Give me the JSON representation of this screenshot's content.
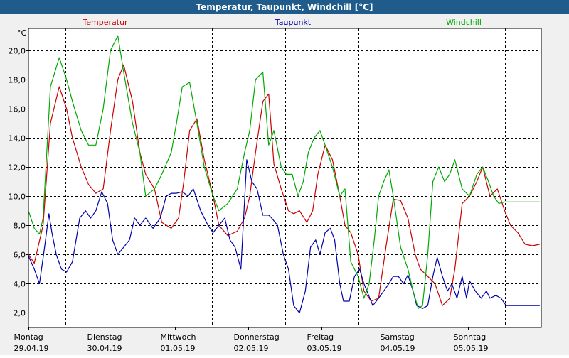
{
  "window": {
    "title": "Temperatur, Taupunkt, Windchill [°C]"
  },
  "chart_data": {
    "type": "line",
    "title": "Temperatur, Taupunkt, Windchill [°C]",
    "yunit": "°C",
    "ylim": [
      1.0,
      21.5
    ],
    "yticks": [
      2,
      4,
      6,
      8,
      10,
      12,
      14,
      16,
      18,
      20
    ],
    "ytick_labels": [
      "2,0",
      "4,0",
      "6,0",
      "8,0",
      "10,0",
      "12,0",
      "14,0",
      "16,0",
      "18,0",
      "20,0"
    ],
    "xlim": [
      0,
      7
    ],
    "day_labels": [
      {
        "day": "Montag",
        "date": "29.04.19"
      },
      {
        "day": "Dienstag",
        "date": "30.04.19"
      },
      {
        "day": "Mittwoch",
        "date": "01.05.19"
      },
      {
        "day": "Donnerstag",
        "date": "02.05.19"
      },
      {
        "day": "Freitag",
        "date": "03.05.19"
      },
      {
        "day": "Samstag",
        "date": "04.05.19"
      },
      {
        "day": "Sonntag",
        "date": "05.05.19"
      }
    ],
    "grid": true,
    "series": [
      {
        "name": "Temperatur",
        "color": "#cc0000",
        "x": [
          0,
          0.08,
          0.2,
          0.3,
          0.42,
          0.52,
          0.6,
          0.72,
          0.82,
          0.92,
          1.02,
          1.12,
          1.22,
          1.3,
          1.42,
          1.52,
          1.6,
          1.72,
          1.82,
          1.95,
          2.05,
          2.12,
          2.2,
          2.3,
          2.4,
          2.52,
          2.6,
          2.72,
          2.85,
          2.95,
          3.02,
          3.1,
          3.2,
          3.28,
          3.35,
          3.45,
          3.55,
          3.62,
          3.7,
          3.8,
          3.88,
          3.95,
          4.05,
          4.15,
          4.25,
          4.32,
          4.4,
          4.5,
          4.58,
          4.68,
          4.78,
          4.88,
          4.98,
          5.08,
          5.18,
          5.28,
          5.35,
          5.45,
          5.55,
          5.65,
          5.75,
          5.82,
          5.92,
          6.02,
          6.12,
          6.2,
          6.3,
          6.4,
          6.5,
          6.58,
          6.68,
          6.78,
          6.88,
          6.98
        ],
        "values": [
          6.0,
          5.4,
          8.0,
          15.0,
          17.5,
          16.0,
          14.0,
          12.0,
          10.8,
          10.2,
          10.5,
          14.5,
          18.0,
          19.0,
          16.5,
          13.0,
          11.5,
          10.5,
          8.2,
          7.8,
          8.5,
          11.0,
          14.5,
          15.3,
          12.5,
          10.0,
          8.0,
          7.3,
          7.6,
          8.5,
          10.0,
          13.0,
          16.5,
          17.0,
          12.2,
          10.5,
          9.0,
          8.8,
          9.0,
          8.2,
          9.0,
          11.5,
          13.5,
          12.5,
          10.0,
          8.0,
          7.5,
          6.0,
          3.5,
          2.8,
          3.0,
          6.5,
          9.8,
          9.7,
          8.5,
          6.0,
          5.0,
          4.5,
          4.0,
          2.5,
          3.0,
          5.0,
          9.5,
          10.0,
          11.0,
          12.0,
          10.0,
          10.5,
          9.0,
          8.0,
          7.5,
          6.7,
          6.6,
          6.7
        ]
      },
      {
        "name": "Taupunkt",
        "color": "#0000aa",
        "x": [
          0,
          0.08,
          0.15,
          0.22,
          0.28,
          0.32,
          0.38,
          0.45,
          0.52,
          0.6,
          0.7,
          0.78,
          0.85,
          0.92,
          1.0,
          1.08,
          1.15,
          1.22,
          1.3,
          1.38,
          1.45,
          1.52,
          1.6,
          1.7,
          1.8,
          1.88,
          1.95,
          2.02,
          2.1,
          2.18,
          2.25,
          2.35,
          2.45,
          2.52,
          2.6,
          2.68,
          2.75,
          2.82,
          2.9,
          2.98,
          3.05,
          3.12,
          3.2,
          3.28,
          3.32,
          3.4,
          3.48,
          3.55,
          3.62,
          3.7,
          3.78,
          3.85,
          3.92,
          3.98,
          4.05,
          4.12,
          4.18,
          4.25,
          4.3,
          4.38,
          4.45,
          4.52,
          4.58,
          4.62,
          4.7,
          4.78,
          4.85,
          4.92,
          4.98,
          5.05,
          5.12,
          5.18,
          5.25,
          5.3,
          5.38,
          5.45,
          5.52,
          5.58,
          5.65,
          5.72,
          5.78,
          5.85,
          5.92,
          5.98,
          6.02,
          6.1,
          6.18,
          6.25,
          6.3,
          6.38,
          6.45,
          6.52,
          6.58,
          6.65,
          6.72,
          6.78,
          6.85,
          6.92,
          6.98
        ],
        "values": [
          5.9,
          5.0,
          4.0,
          6.5,
          8.8,
          7.5,
          6.0,
          5.0,
          4.8,
          5.5,
          8.5,
          9.0,
          8.5,
          9.0,
          10.3,
          9.5,
          7.0,
          6.0,
          6.5,
          7.0,
          8.5,
          8.0,
          8.5,
          7.8,
          8.5,
          10.0,
          10.2,
          10.2,
          10.3,
          10.0,
          10.5,
          9.0,
          8.0,
          7.5,
          8.0,
          8.5,
          7.0,
          6.5,
          5.0,
          12.5,
          11.0,
          10.5,
          8.7,
          8.7,
          8.5,
          8.0,
          6.0,
          5.0,
          2.5,
          2.0,
          3.5,
          6.5,
          7.0,
          6.0,
          7.5,
          7.8,
          7.0,
          4.0,
          2.8,
          2.8,
          4.5,
          5.0,
          4.0,
          3.5,
          2.5,
          3.0,
          3.5,
          4.0,
          4.5,
          4.5,
          4.0,
          4.6,
          3.5,
          2.5,
          2.3,
          2.5,
          4.5,
          5.8,
          4.5,
          3.5,
          4.0,
          3.0,
          4.5,
          3.0,
          4.2,
          3.5,
          3.0,
          3.5,
          3.0,
          3.2,
          3.0,
          2.5,
          2.5,
          2.5,
          2.5,
          2.5,
          2.5,
          2.5,
          2.5
        ]
      },
      {
        "name": "Windchill",
        "color": "#00aa00",
        "x": [
          0,
          0.08,
          0.15,
          0.2,
          0.3,
          0.42,
          0.52,
          0.6,
          0.72,
          0.82,
          0.92,
          1.02,
          1.12,
          1.22,
          1.3,
          1.42,
          1.52,
          1.6,
          1.72,
          1.82,
          1.95,
          2.02,
          2.1,
          2.2,
          2.3,
          2.4,
          2.52,
          2.6,
          2.72,
          2.85,
          2.95,
          3.02,
          3.1,
          3.2,
          3.28,
          3.35,
          3.45,
          3.52,
          3.6,
          3.68,
          3.75,
          3.82,
          3.9,
          3.98,
          4.05,
          4.15,
          4.25,
          4.32,
          4.4,
          4.5,
          4.58,
          4.65,
          4.72,
          4.78,
          4.85,
          4.92,
          4.98,
          5.08,
          5.18,
          5.25,
          5.32,
          5.38,
          5.45,
          5.52,
          5.6,
          5.68,
          5.75,
          5.82,
          5.92,
          6.02,
          6.12,
          6.2,
          6.28,
          6.35,
          6.42,
          6.5,
          6.58,
          6.65,
          6.72,
          6.8,
          6.88,
          6.98
        ],
        "values": [
          9.0,
          7.8,
          7.4,
          8.5,
          17.5,
          19.5,
          18.0,
          16.5,
          14.5,
          13.5,
          13.5,
          16.0,
          20.0,
          21.0,
          18.5,
          15.0,
          13.0,
          10.0,
          10.5,
          11.5,
          13.0,
          15.0,
          17.5,
          17.8,
          15.0,
          12.0,
          10.0,
          9.0,
          9.5,
          10.5,
          13.0,
          14.5,
          18.0,
          18.5,
          13.5,
          14.5,
          12.0,
          11.5,
          11.5,
          10.0,
          11.0,
          13.0,
          14.0,
          14.5,
          13.5,
          12.0,
          10.0,
          10.5,
          5.5,
          4.5,
          3.0,
          4.0,
          7.0,
          10.0,
          11.0,
          11.8,
          10.0,
          6.5,
          5.0,
          3.5,
          2.3,
          2.5,
          6.0,
          11.0,
          12.0,
          11.0,
          11.5,
          12.5,
          10.5,
          10.0,
          11.5,
          12.0,
          11.0,
          10.0,
          9.5,
          9.6,
          9.6,
          9.6,
          9.6,
          9.6,
          9.6,
          9.6
        ]
      }
    ]
  }
}
